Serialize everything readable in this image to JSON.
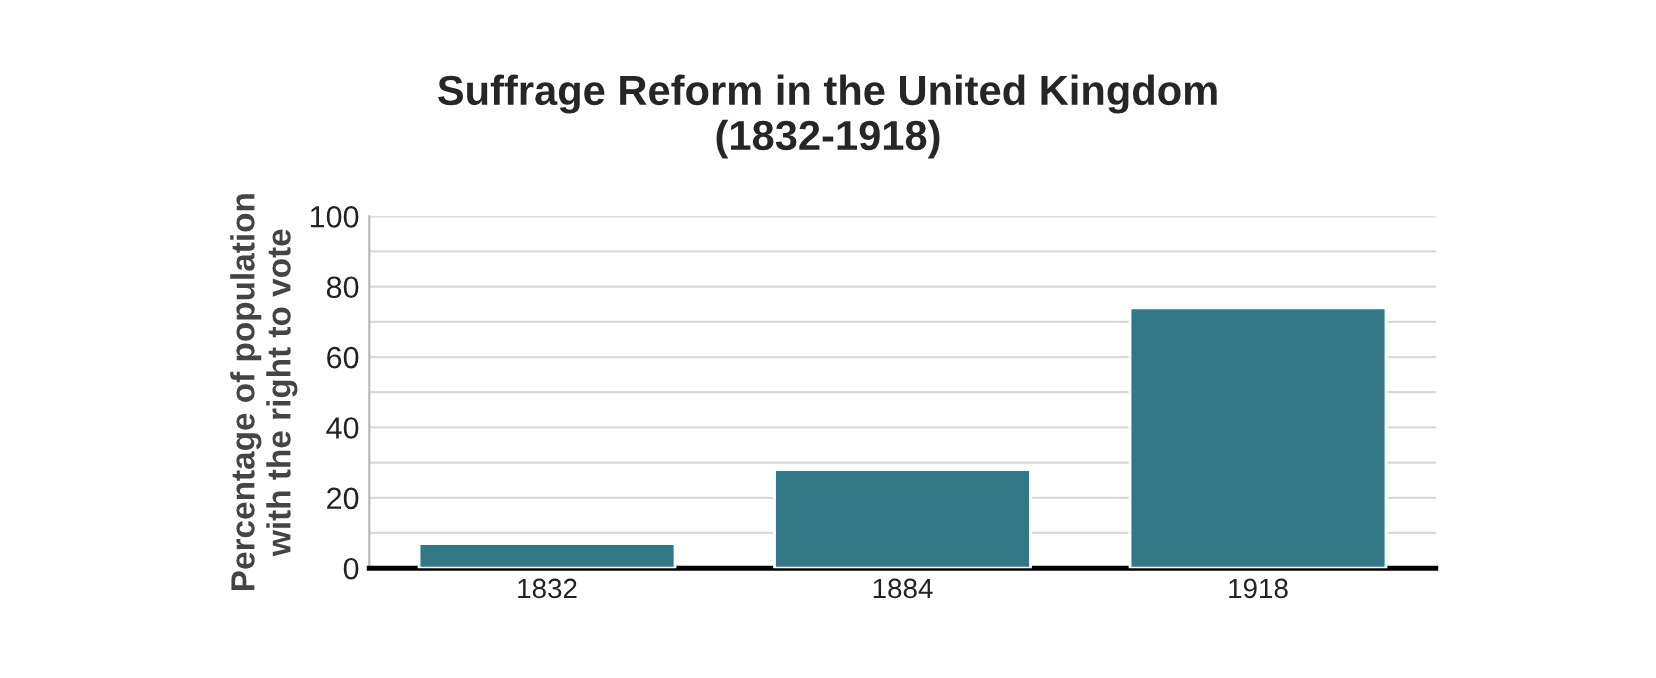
{
  "chart_data": {
    "type": "bar",
    "title": "Suffrage Reform in the United Kingdom\n(1832-1918)",
    "ylabel": "Percentage of population\nwith the right to vote",
    "categories": [
      "1832",
      "1884",
      "1918"
    ],
    "values": [
      7,
      28,
      74
    ],
    "color": "#337886",
    "ylim": [
      0,
      100
    ],
    "yticks": [
      0,
      {
        "value": 10,
        "label": null
      },
      20,
      {
        "value": 30,
        "label": null
      },
      40,
      {
        "value": 50,
        "label": null
      },
      60,
      {
        "value": 70,
        "label": null
      },
      80,
      {
        "value": 90,
        "label": null
      },
      100
    ],
    "grid": "y",
    "legend": false
  }
}
